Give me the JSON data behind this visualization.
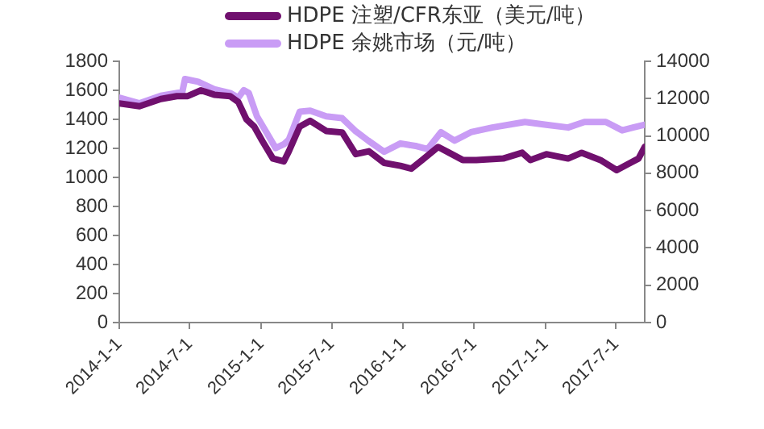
{
  "chart_data": {
    "type": "line",
    "xlim": [
      "2014-01-01",
      "2017-09-13"
    ],
    "xticks": [
      {
        "value": "2014-01-01",
        "label": "2014-1-1"
      },
      {
        "value": "2014-07-01",
        "label": "2014-7-1"
      },
      {
        "value": "2015-01-01",
        "label": "2015-1-1"
      },
      {
        "value": "2015-07-01",
        "label": "2015-7-1"
      },
      {
        "value": "2016-01-01",
        "label": "2016-1-1"
      },
      {
        "value": "2016-07-01",
        "label": "2016-7-1"
      },
      {
        "value": "2017-01-01",
        "label": "2017-1-1"
      },
      {
        "value": "2017-07-01",
        "label": "2017-7-1"
      }
    ],
    "ylim": [
      0,
      1800
    ],
    "yticks": [
      0,
      200,
      400,
      600,
      800,
      1000,
      1200,
      1400,
      1600,
      1800
    ],
    "y2lim": [
      0,
      14000
    ],
    "y2ticks": [
      0,
      2000,
      4000,
      6000,
      8000,
      10000,
      12000,
      14000
    ],
    "grid": false,
    "legend": "top",
    "marker": "none",
    "line_style": "solid",
    "series": [
      {
        "name": "HDPE 注塑/CFR东亚（美元/吨）",
        "color": "#70106e",
        "axis": "y",
        "x": [
          "2014-01-01",
          "2014-02-22",
          "2014-04-18",
          "2014-05-29",
          "2014-06-26",
          "2014-07-30",
          "2014-09-02",
          "2014-10-13",
          "2014-11-03",
          "2014-11-24",
          "2014-12-14",
          "2015-01-04",
          "2015-01-31",
          "2015-02-28",
          "2015-03-13",
          "2015-04-10",
          "2015-05-07",
          "2015-06-17",
          "2015-07-28",
          "2015-09-01",
          "2015-10-05",
          "2015-11-13",
          "2015-12-25",
          "2016-01-22",
          "2016-02-19",
          "2016-03-31",
          "2016-04-28",
          "2016-06-02",
          "2016-07-07",
          "2016-09-14",
          "2016-11-02",
          "2016-11-23",
          "2017-01-03",
          "2017-02-28",
          "2017-04-04",
          "2017-05-22",
          "2017-07-03",
          "2017-07-31",
          "2017-08-28",
          "2017-09-13"
        ],
        "values": [
          1510,
          1490,
          1540,
          1560,
          1560,
          1600,
          1570,
          1560,
          1520,
          1400,
          1350,
          1250,
          1130,
          1110,
          1180,
          1350,
          1390,
          1320,
          1310,
          1160,
          1180,
          1100,
          1080,
          1060,
          1120,
          1210,
          1170,
          1120,
          1120,
          1130,
          1170,
          1120,
          1160,
          1130,
          1170,
          1120,
          1050,
          1090,
          1130,
          1210
        ]
      },
      {
        "name": "HDPE 余姚市场（元/吨）",
        "color": "#c99cf5",
        "axis": "y2",
        "x": [
          "2014-01-01",
          "2014-02-22",
          "2014-04-18",
          "2014-06-12",
          "2014-06-19",
          "2014-07-23",
          "2014-09-02",
          "2014-10-13",
          "2014-11-03",
          "2014-11-17",
          "2014-11-30",
          "2014-12-21",
          "2015-01-17",
          "2015-02-07",
          "2015-02-28",
          "2015-03-13",
          "2015-04-10",
          "2015-05-07",
          "2015-06-17",
          "2015-07-28",
          "2015-09-01",
          "2015-10-03",
          "2015-11-13",
          "2015-12-25",
          "2016-02-05",
          "2016-03-04",
          "2016-04-07",
          "2016-05-12",
          "2016-06-23",
          "2016-08-17",
          "2016-11-09",
          "2017-01-03",
          "2017-02-28",
          "2017-04-11",
          "2017-06-05",
          "2017-07-17",
          "2017-08-14",
          "2017-09-13"
        ],
        "values": [
          12050,
          11750,
          12150,
          12350,
          13050,
          12900,
          12500,
          12300,
          12050,
          12450,
          12300,
          11050,
          10100,
          9350,
          9550,
          9800,
          11300,
          11350,
          11050,
          10950,
          10250,
          9750,
          9150,
          9600,
          9450,
          9300,
          10200,
          9750,
          10200,
          10450,
          10750,
          10600,
          10450,
          10750,
          10750,
          10300,
          10450,
          10600
        ]
      }
    ]
  }
}
